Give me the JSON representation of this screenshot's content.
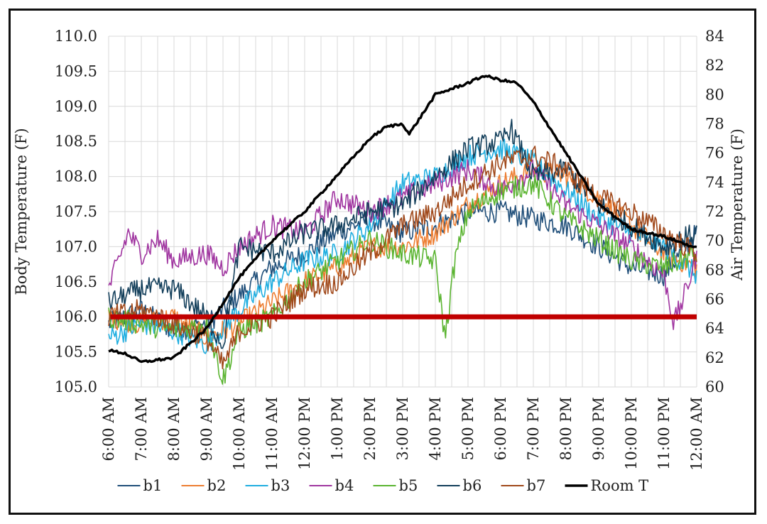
{
  "chart_data": {
    "type": "line",
    "title": "",
    "xlabel": "",
    "ylabel": "Body Temperature (F)",
    "y2label": "Air Temperature (F)",
    "x_categories": [
      "6:00 AM",
      "7:00 AM",
      "8:00 AM",
      "9:00 AM",
      "10:00 AM",
      "11:00 AM",
      "12:00 PM",
      "1:00 PM",
      "2:00 PM",
      "3:00 PM",
      "4:00 PM",
      "5:00 PM",
      "6:00 PM",
      "7:00 PM",
      "8:00 PM",
      "9:00 PM",
      "10:00 PM",
      "11:00 PM",
      "12:00 AM"
    ],
    "x_hours": [
      0,
      18
    ],
    "ylim": [
      105.0,
      110.0
    ],
    "y_ticks": [
      "105.0",
      "105.5",
      "106.0",
      "106.5",
      "107.0",
      "107.5",
      "108.0",
      "108.5",
      "109.0",
      "109.5",
      "110.0"
    ],
    "y2lim": [
      60,
      84
    ],
    "y2_ticks": [
      "60",
      "62",
      "64",
      "66",
      "68",
      "70",
      "72",
      "74",
      "76",
      "78",
      "80",
      "82",
      "84"
    ],
    "grid": true,
    "legend_position": "bottom",
    "threshold": {
      "value": 106.0,
      "color": "#c00000"
    },
    "series": [
      {
        "name": "b1",
        "axis": "left",
        "color": "#1f4e79",
        "hours": [
          0,
          1,
          2,
          3,
          4,
          5,
          6,
          7,
          8,
          9,
          10,
          11,
          12,
          13,
          14,
          15,
          16,
          17,
          18
        ],
        "values": [
          105.9,
          106.1,
          105.8,
          105.9,
          106.3,
          106.7,
          106.9,
          107.2,
          107.4,
          107.2,
          107.3,
          107.5,
          107.5,
          107.4,
          107.3,
          107.0,
          106.7,
          106.6,
          107.2
        ]
      },
      {
        "name": "b2",
        "axis": "left",
        "color": "#ed7d31",
        "hours": [
          0,
          1,
          2,
          3,
          4,
          5,
          6,
          7,
          8,
          9,
          10,
          11,
          12,
          13,
          14,
          15,
          16,
          17,
          18
        ],
        "values": [
          106.0,
          105.9,
          106.0,
          105.7,
          105.9,
          106.2,
          106.5,
          106.7,
          107.0,
          107.0,
          107.2,
          107.6,
          107.9,
          108.1,
          108.0,
          107.7,
          107.3,
          106.9,
          106.7
        ]
      },
      {
        "name": "b3",
        "axis": "left",
        "color": "#1faee0",
        "hours": [
          0,
          1,
          2,
          3,
          4,
          5,
          6,
          7,
          8,
          9,
          10,
          11,
          12,
          13,
          14,
          15,
          16,
          17,
          18
        ],
        "values": [
          105.7,
          105.9,
          105.8,
          105.6,
          106.1,
          106.5,
          106.8,
          106.9,
          107.3,
          107.9,
          108.0,
          108.3,
          108.4,
          108.2,
          107.8,
          107.4,
          107.2,
          107.0,
          106.6
        ]
      },
      {
        "name": "b4",
        "axis": "left",
        "color": "#a035a0",
        "hours": [
          0,
          0.6,
          1,
          1.5,
          2,
          3,
          3.5,
          4,
          5,
          6,
          7,
          8,
          9,
          10,
          11,
          12,
          13,
          14,
          15,
          16,
          17,
          17.3,
          17.7,
          18
        ],
        "values": [
          106.4,
          107.2,
          106.9,
          107.1,
          106.8,
          106.9,
          106.7,
          107.0,
          107.3,
          107.2,
          107.7,
          107.5,
          107.7,
          107.9,
          108.1,
          107.8,
          108.1,
          107.6,
          107.3,
          107.0,
          106.6,
          105.9,
          106.4,
          106.9
        ]
      },
      {
        "name": "b5",
        "axis": "left",
        "color": "#5ab430",
        "hours": [
          0,
          1,
          2,
          3,
          3.5,
          4,
          5,
          6,
          7,
          8,
          9,
          10,
          10.3,
          10.6,
          11,
          12,
          13,
          14,
          15,
          16,
          17,
          18
        ],
        "values": [
          106.0,
          105.9,
          105.8,
          105.9,
          105.1,
          105.8,
          106.0,
          106.5,
          106.8,
          107.1,
          106.9,
          106.8,
          105.7,
          106.8,
          107.5,
          107.8,
          107.9,
          107.4,
          107.1,
          106.8,
          106.7,
          106.9
        ]
      },
      {
        "name": "b6",
        "axis": "left",
        "color": "#123e5a",
        "hours": [
          0,
          1,
          2,
          3,
          3.5,
          4,
          5,
          6,
          7,
          8,
          9,
          10,
          11,
          12,
          12.3,
          13,
          14,
          15,
          16,
          17,
          18
        ],
        "values": [
          106.2,
          106.4,
          106.4,
          106.0,
          105.6,
          107.0,
          106.9,
          107.2,
          107.3,
          107.5,
          107.6,
          108.0,
          108.4,
          108.5,
          108.7,
          108.0,
          108.1,
          107.6,
          107.3,
          107.0,
          107.2
        ]
      },
      {
        "name": "b7",
        "axis": "left",
        "color": "#a0481a",
        "hours": [
          0,
          1,
          2,
          3,
          3.5,
          4,
          5,
          6,
          7,
          8,
          9,
          10,
          11,
          12,
          13,
          14,
          15,
          16,
          17,
          18
        ],
        "values": [
          106.0,
          106.1,
          105.9,
          105.7,
          105.3,
          105.8,
          106.0,
          106.4,
          106.5,
          106.9,
          107.3,
          107.5,
          107.9,
          108.2,
          108.3,
          108.1,
          107.7,
          107.5,
          107.2,
          106.9
        ]
      },
      {
        "name": "Room T",
        "axis": "right",
        "color": "#000000",
        "hours": [
          0,
          0.5,
          1,
          2,
          3,
          4,
          5,
          6,
          7,
          8,
          8.5,
          9,
          9.2,
          10,
          11,
          11.5,
          12,
          12.5,
          13,
          14,
          15,
          16,
          17,
          18
        ],
        "values": [
          62.5,
          62.3,
          61.7,
          62.0,
          64.0,
          67.5,
          70.0,
          72.0,
          74.5,
          77.0,
          77.8,
          78.0,
          77.3,
          80.0,
          80.8,
          81.3,
          81.0,
          80.8,
          79.5,
          76.0,
          72.5,
          70.8,
          70.3,
          69.5
        ]
      }
    ]
  }
}
